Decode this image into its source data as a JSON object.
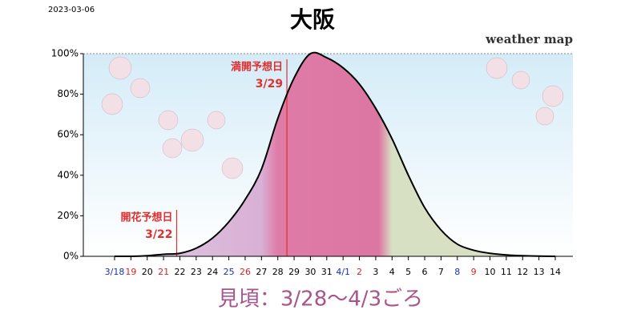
{
  "date": "2023-03-06",
  "logo": "weather map",
  "chart_data": {
    "type": "line",
    "title": "大阪",
    "subtitle": "見頃：3/28〜4/3ごろ",
    "categories": [
      "3/18",
      "19",
      "20",
      "21",
      "22",
      "23",
      "24",
      "25",
      "26",
      "27",
      "28",
      "29",
      "30",
      "31",
      "4/1",
      "2",
      "3",
      "4",
      "5",
      "6",
      "7",
      "8",
      "9",
      "10",
      "11",
      "12",
      "13",
      "14"
    ],
    "category_colors": [
      "#1a2fc8",
      "#e02020",
      "#000000",
      "#e02020",
      "#000000",
      "#000000",
      "#000000",
      "#1a2fc8",
      "#e02020",
      "#000000",
      "#000000",
      "#000000",
      "#000000",
      "#000000",
      "#1a2fc8",
      "#e02020",
      "#000000",
      "#000000",
      "#000000",
      "#000000",
      "#000000",
      "#1a2fc8",
      "#e02020",
      "#000000",
      "#000000",
      "#000000",
      "#000000",
      "#000000"
    ],
    "values": [
      0,
      0,
      0.3,
      1,
      1.5,
      4,
      9,
      17,
      28,
      43,
      68,
      88,
      100,
      98,
      93,
      85,
      73,
      58,
      40,
      24,
      13,
      6,
      3,
      1.5,
      0.7,
      0.3,
      0.1,
      0
    ],
    "color": "#000000",
    "ylim": [
      0,
      100
    ],
    "yticks": [
      {
        "value": 0,
        "label": "0%"
      },
      {
        "value": 20,
        "label": "20%"
      },
      {
        "value": 40,
        "label": "40%"
      },
      {
        "value": 60,
        "label": "60%"
      },
      {
        "value": 80,
        "label": "80%"
      },
      {
        "value": 100,
        "label": "100%"
      }
    ],
    "annotations": [
      {
        "label": "開花予想日",
        "date": "3/22"
      },
      {
        "label": "満開予想日",
        "date": "3/29"
      }
    ],
    "annotation_color": "#e03030"
  }
}
